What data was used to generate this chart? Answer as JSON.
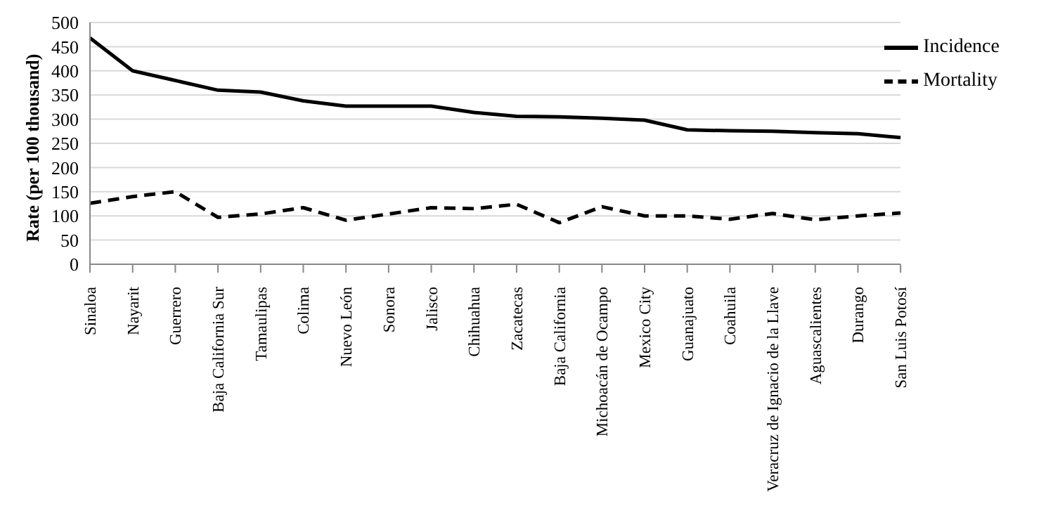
{
  "chart_data": {
    "type": "line",
    "ylabel": "Rate (per 100 thousand)",
    "categories": [
      "Sinaloa",
      "Nayarit",
      "Guerrero",
      "Baja California Sur",
      "Tamaulipas",
      "Colima",
      "Nuevo León",
      "Sonora",
      "Jalisco",
      "Chihuahua",
      "Zacatecas",
      "Baja California",
      "Michoacán de Ocampo",
      "Mexico City",
      "Guanajuato",
      "Coahuila",
      "Veracruz de Ignacio de la Llave",
      "Aguascalientes",
      "Durango",
      "San Luis Potosí"
    ],
    "series": [
      {
        "name": "Incidence",
        "color": "#000000",
        "line_style": "solid",
        "values": [
          468,
          400,
          380,
          360,
          356,
          338,
          327,
          327,
          327,
          314,
          306,
          305,
          302,
          298,
          278,
          276,
          275,
          272,
          270,
          262
        ]
      },
      {
        "name": "Mortality",
        "color": "#000000",
        "line_style": "dashed",
        "values": [
          126,
          140,
          150,
          97,
          104,
          117,
          91,
          104,
          117,
          115,
          124,
          86,
          119,
          100,
          100,
          93,
          105,
          92,
          100,
          106
        ]
      }
    ],
    "ylim": [
      0,
      500
    ],
    "yticks": [
      0,
      50,
      100,
      150,
      200,
      250,
      300,
      350,
      400,
      450,
      500
    ],
    "grid": "y",
    "legend": "top right"
  }
}
